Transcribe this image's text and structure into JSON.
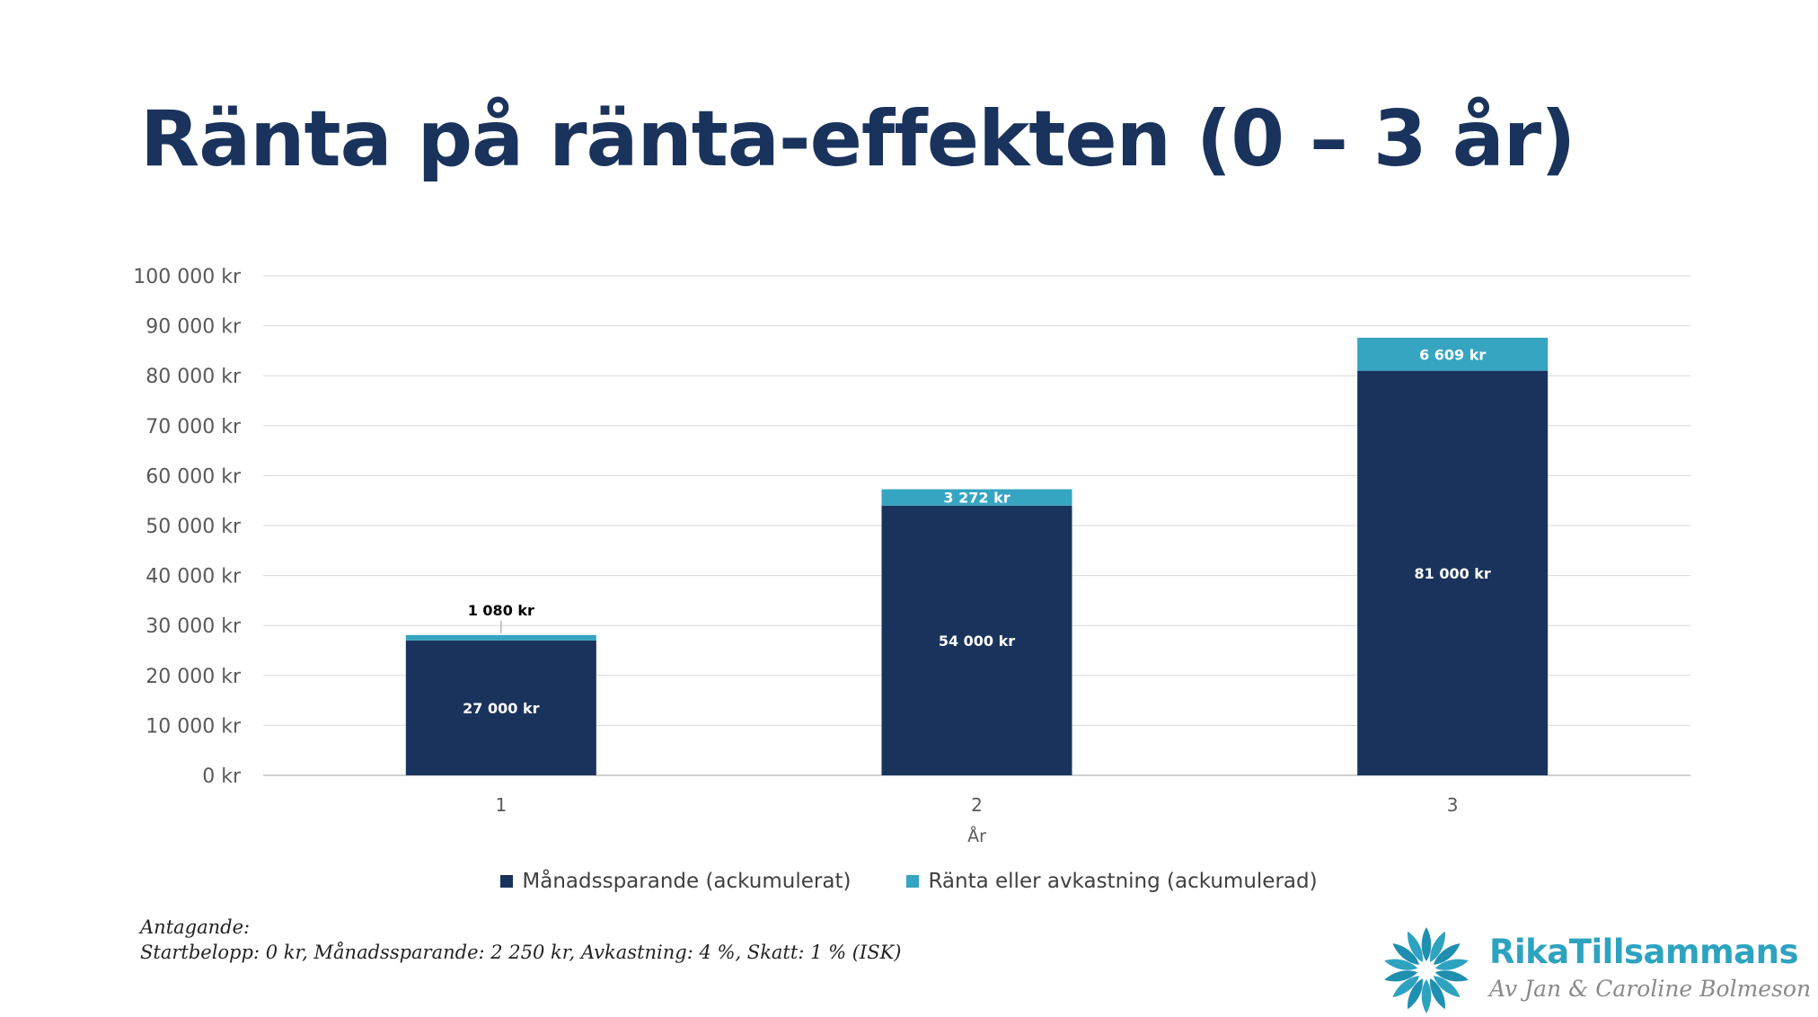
{
  "title": "Ränta på ränta-effekten (0 – 3 år)",
  "colors": {
    "savings": "#1a335c",
    "interest": "#35a5c1",
    "title": "#1a335c",
    "axis_text": "#595959",
    "grid": "#d9d9d9"
  },
  "chart_data": {
    "type": "bar",
    "stacked": true,
    "categories": [
      "1",
      "2",
      "3"
    ],
    "xlabel": "År",
    "ylabel": "",
    "ylim": [
      0,
      100000
    ],
    "ytick_labels": [
      "0 kr",
      "10 000 kr",
      "20 000 kr",
      "30 000 kr",
      "40 000 kr",
      "50 000 kr",
      "60 000 kr",
      "70 000 kr",
      "80 000 kr",
      "90 000 kr",
      "100 000 kr"
    ],
    "grid": true,
    "legend_position": "bottom",
    "series": [
      {
        "name": "Månadssparande (ackumulerat)",
        "values": [
          27000,
          54000,
          81000
        ],
        "labels": [
          "27 000 kr",
          "54 000 kr",
          "81 000 kr"
        ],
        "color": "#1a335c"
      },
      {
        "name": "Ränta eller avkastning (ackumulerad)",
        "values": [
          1080,
          3272,
          6609
        ],
        "labels": [
          "1 080 kr",
          "3 272 kr",
          "6 609 kr"
        ],
        "color": "#35a5c1"
      }
    ]
  },
  "assumptions": {
    "heading": "Antagande:",
    "text": "Startbelopp: 0 kr, Månadssparande: 2 250 kr, Avkastning: 4 %, Skatt: 1 % (ISK)"
  },
  "logo": {
    "name": "RikaTillsammans",
    "tagline": "Av Jan & Caroline Bolmeson"
  }
}
